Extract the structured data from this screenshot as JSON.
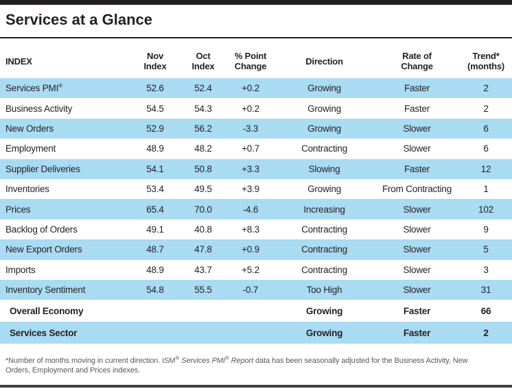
{
  "title": "Services at a Glance",
  "colors": {
    "row_shade": "#a9dbf3",
    "text": "#231f20",
    "footnote_text": "#58595b",
    "top_bar": "#231f20",
    "bottom_bar": "#404041"
  },
  "table": {
    "header": [
      {
        "key": "name",
        "lines": [
          "INDEX"
        ]
      },
      {
        "key": "nov",
        "lines": [
          "Nov",
          "Index"
        ]
      },
      {
        "key": "oct",
        "lines": [
          "Oct",
          "Index"
        ]
      },
      {
        "key": "pct",
        "lines": [
          "% Point",
          "Change"
        ]
      },
      {
        "key": "direction",
        "lines": [
          "Direction"
        ]
      },
      {
        "key": "rate",
        "lines": [
          "Rate of",
          "Change"
        ]
      },
      {
        "key": "trend",
        "lines": [
          "Trend*",
          "(months)"
        ]
      }
    ],
    "rows": [
      {
        "name": "Services PMI®",
        "nov": "52.6",
        "oct": "52.4",
        "pct": "+0.2",
        "direction": "Growing",
        "rate": "Faster",
        "trend": "2",
        "shaded": true,
        "bold": false
      },
      {
        "name": "Business Activity",
        "nov": "54.5",
        "oct": "54.3",
        "pct": "+0.2",
        "direction": "Growing",
        "rate": "Faster",
        "trend": "2",
        "shaded": false,
        "bold": false
      },
      {
        "name": "New Orders",
        "nov": "52.9",
        "oct": "56.2",
        "pct": "-3.3",
        "direction": "Growing",
        "rate": "Slower",
        "trend": "6",
        "shaded": true,
        "bold": false
      },
      {
        "name": "Employment",
        "nov": "48.9",
        "oct": "48.2",
        "pct": "+0.7",
        "direction": "Contracting",
        "rate": "Slower",
        "trend": "6",
        "shaded": false,
        "bold": false
      },
      {
        "name": "Supplier Deliveries",
        "nov": "54.1",
        "oct": "50.8",
        "pct": "+3.3",
        "direction": "Slowing",
        "rate": "Faster",
        "trend": "12",
        "shaded": true,
        "bold": false
      },
      {
        "name": "Inventories",
        "nov": "53.4",
        "oct": "49.5",
        "pct": "+3.9",
        "direction": "Growing",
        "rate": "From Contracting",
        "trend": "1",
        "shaded": false,
        "bold": false
      },
      {
        "name": "Prices",
        "nov": "65.4",
        "oct": "70.0",
        "pct": "-4.6",
        "direction": "Increasing",
        "rate": "Slower",
        "trend": "102",
        "shaded": true,
        "bold": false
      },
      {
        "name": "Backlog of Orders",
        "nov": "49.1",
        "oct": "40.8",
        "pct": "+8.3",
        "direction": "Contracting",
        "rate": "Slower",
        "trend": "9",
        "shaded": false,
        "bold": false
      },
      {
        "name": "New Export Orders",
        "nov": "48.7",
        "oct": "47.8",
        "pct": "+0.9",
        "direction": "Contracting",
        "rate": "Slower",
        "trend": "5",
        "shaded": true,
        "bold": false
      },
      {
        "name": "Imports",
        "nov": "48.9",
        "oct": "43.7",
        "pct": "+5.2",
        "direction": "Contracting",
        "rate": "Slower",
        "trend": "3",
        "shaded": false,
        "bold": false
      },
      {
        "name": "Inventory Sentiment",
        "nov": "54.8",
        "oct": "55.5",
        "pct": "-0.7",
        "direction": "Too High",
        "rate": "Slower",
        "trend": "31",
        "shaded": true,
        "bold": false
      },
      {
        "name": "Overall Economy",
        "nov": "",
        "oct": "",
        "pct": "",
        "direction": "Growing",
        "rate": "Faster",
        "trend": "66",
        "shaded": false,
        "bold": true
      },
      {
        "name": "Services Sector",
        "nov": "",
        "oct": "",
        "pct": "",
        "direction": "Growing",
        "rate": "Faster",
        "trend": "2",
        "shaded": true,
        "bold": true
      }
    ]
  },
  "footnote": {
    "segments": [
      {
        "text": "*Number of months moving in current direction. ISM",
        "sup": false,
        "italic": false
      },
      {
        "text": "®",
        "sup": true,
        "italic": false
      },
      {
        "text": " ",
        "sup": false,
        "italic": false
      },
      {
        "text": "Services PMI",
        "sup": false,
        "italic": true
      },
      {
        "text": "®",
        "sup": true,
        "italic": true
      },
      {
        "text": " Report",
        "sup": false,
        "italic": true
      },
      {
        "text": " data has been seasonally adjusted for the Business Activity, New Orders, Employment and Prices indexes.",
        "sup": false,
        "italic": false
      }
    ]
  }
}
